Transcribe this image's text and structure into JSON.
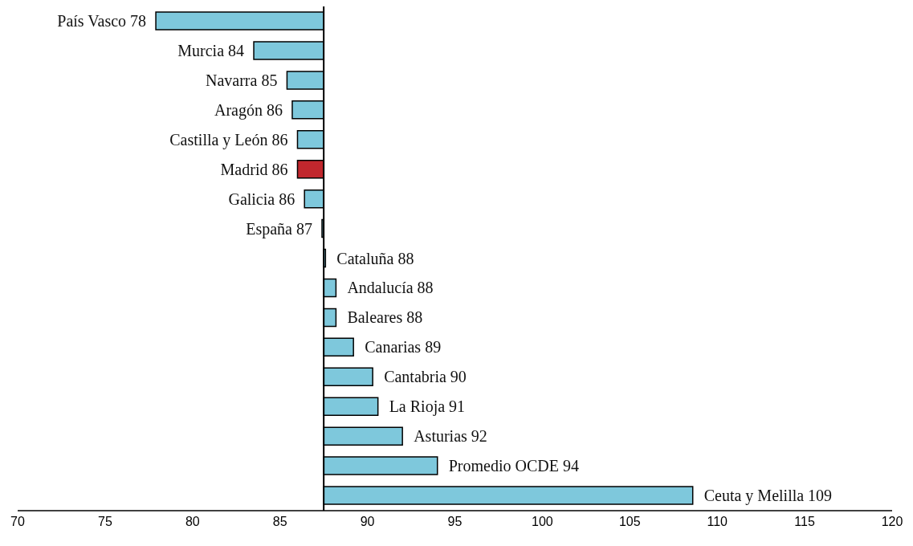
{
  "chart_data": {
    "type": "bar",
    "orientation": "horizontal",
    "categories": [
      "País Vasco 78",
      "Murcia 84",
      "Navarra 85",
      "Aragón 86",
      "Castilla y León 86",
      "Madrid 86",
      "Galicia 86",
      "España 87",
      "Cataluña 88",
      "Andalucía 88",
      "Baleares 88",
      "Canarias 89",
      "Cantabria 90",
      "La Rioja 91",
      "Asturias 92",
      "Promedio OCDE 94",
      "Ceuta y Melilla 109"
    ],
    "base": [
      87.5,
      87.5,
      87.5,
      87.5,
      87.5,
      87.5,
      87.5,
      87.5,
      87.5,
      87.5,
      87.5,
      87.5,
      87.5,
      87.5,
      87.5,
      87.5,
      87.5
    ],
    "values": [
      -9.6,
      -4.0,
      -2.1,
      -1.8,
      -1.5,
      -1.5,
      -1.1,
      -0.1,
      0.1,
      0.7,
      0.7,
      1.7,
      2.8,
      3.1,
      4.5,
      6.5,
      21.1
    ],
    "colors": [
      "#7ec8dc",
      "#7ec8dc",
      "#7ec8dc",
      "#7ec8dc",
      "#7ec8dc",
      "#c1272d",
      "#7ec8dc",
      "#7ec8dc",
      "#7ec8dc",
      "#7ec8dc",
      "#7ec8dc",
      "#7ec8dc",
      "#7ec8dc",
      "#7ec8dc",
      "#7ec8dc",
      "#7ec8dc",
      "#7ec8dc"
    ],
    "xlim": [
      70,
      120
    ],
    "xticks": [
      70,
      75,
      80,
      85,
      90,
      95,
      100,
      105,
      110,
      115,
      120
    ],
    "grid": false,
    "legend": false
  }
}
